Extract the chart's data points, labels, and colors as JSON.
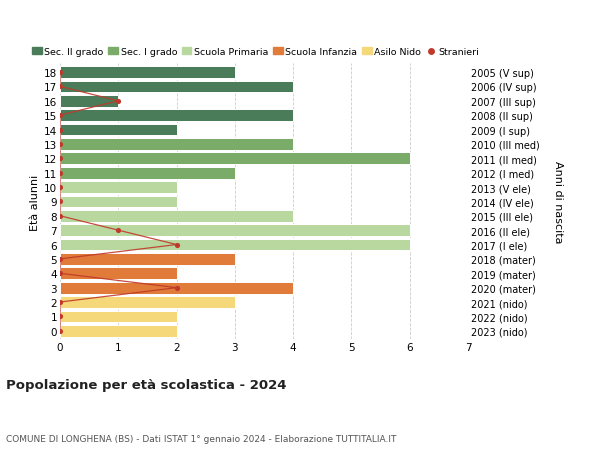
{
  "ages": [
    18,
    17,
    16,
    15,
    14,
    13,
    12,
    11,
    10,
    9,
    8,
    7,
    6,
    5,
    4,
    3,
    2,
    1,
    0
  ],
  "right_labels": [
    "2005 (V sup)",
    "2006 (IV sup)",
    "2007 (III sup)",
    "2008 (II sup)",
    "2009 (I sup)",
    "2010 (III med)",
    "2011 (II med)",
    "2012 (I med)",
    "2013 (V ele)",
    "2014 (IV ele)",
    "2015 (III ele)",
    "2016 (II ele)",
    "2017 (I ele)",
    "2018 (mater)",
    "2019 (mater)",
    "2020 (mater)",
    "2021 (nido)",
    "2022 (nido)",
    "2023 (nido)"
  ],
  "bar_values": [
    3,
    4,
    1,
    4,
    2,
    4,
    6,
    3,
    2,
    2,
    4,
    6,
    6,
    3,
    2,
    4,
    3,
    2,
    2
  ],
  "bar_colors": [
    "#4a7c59",
    "#4a7c59",
    "#4a7c59",
    "#4a7c59",
    "#4a7c59",
    "#7aab68",
    "#7aab68",
    "#7aab68",
    "#b8d8a0",
    "#b8d8a0",
    "#b8d8a0",
    "#b8d8a0",
    "#b8d8a0",
    "#e07b39",
    "#e07b39",
    "#e07b39",
    "#f5d87a",
    "#f5d87a",
    "#f5d87a"
  ],
  "stranieri_ages": [
    18,
    17,
    16,
    15,
    14,
    13,
    12,
    11,
    10,
    9,
    8,
    7,
    6,
    5,
    4,
    3,
    2,
    1,
    0
  ],
  "stranieri_values": [
    0,
    0,
    1,
    0,
    0,
    0,
    0,
    0,
    0,
    0,
    0,
    1,
    2,
    0,
    0,
    2,
    0,
    0,
    0
  ],
  "legend_labels": [
    "Sec. II grado",
    "Sec. I grado",
    "Scuola Primaria",
    "Scuola Infanzia",
    "Asilo Nido",
    "Stranieri"
  ],
  "legend_colors": [
    "#4a7c59",
    "#7aab68",
    "#b8d8a0",
    "#e07b39",
    "#f5d87a",
    "#c0392b"
  ],
  "title": "Popolazione per età scolastica - 2024",
  "subtitle": "COMUNE DI LONGHENA (BS) - Dati ISTAT 1° gennaio 2024 - Elaborazione TUTTITALIA.IT",
  "ylabel_left": "Età alunni",
  "ylabel_right": "Anni di nascita",
  "xlim": [
    0,
    7
  ],
  "ylim_low": -0.6,
  "ylim_high": 18.6,
  "background_color": "#ffffff",
  "grid_color": "#cccccc",
  "bar_height": 0.82,
  "stranieri_color": "#c0392b"
}
